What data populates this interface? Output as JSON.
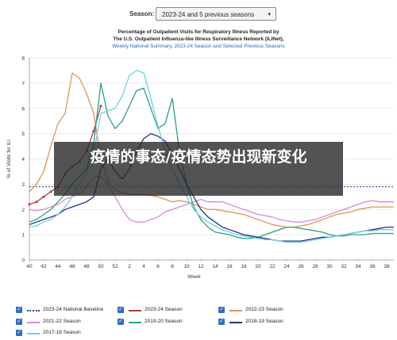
{
  "header": {
    "season_label": "Season:",
    "season_value": "2023-24 and 5 previous seasons",
    "caret": "▾"
  },
  "title": {
    "line1": "Percentage of Outpatient Visits for Respiratory Illness Reported by",
    "line2": "The U.S. Outpatient Influenza-like Illness Surveillance Network (ILINet),",
    "line3": "Weekly National Summary, 2023-24 Season and Selected Previous Seasons"
  },
  "overlay": {
    "text": "疫情的事态/疫情态势出现新变化"
  },
  "colors": {
    "baseline": "#1f3f8f",
    "s2023_24": "#b03a48",
    "s2022_23": "#e0954a",
    "s2021_22": "#d98ad6",
    "s2019_20": "#2aa37a",
    "s2018_19": "#23328a",
    "s2017_18": "#6fd0e8",
    "checkbox": "#2f6fc3"
  },
  "chart_data": {
    "type": "line",
    "xlabel": "Week",
    "ylabel": "% of Visits for ILI",
    "x_ticks": [
      "40",
      "42",
      "44",
      "46",
      "48",
      "50",
      "52",
      "2",
      "4",
      "6",
      "8",
      "10",
      "12",
      "14",
      "16",
      "18",
      "20",
      "22",
      "24",
      "26",
      "28",
      "30",
      "32",
      "34",
      "36",
      "38"
    ],
    "ylim": [
      0,
      8
    ],
    "y_ticks": [
      0,
      1,
      2,
      3,
      4,
      5,
      6,
      7,
      8
    ],
    "baseline": {
      "name": "2023-24 National Baseline",
      "value": 2.9
    },
    "series": [
      {
        "name": "2023-24 Season",
        "key": "s2023_24",
        "markers": true,
        "values": [
          2.2,
          2.3,
          2.5,
          2.7,
          2.9,
          3.4,
          3.7,
          3.9,
          4.3,
          5.1,
          6.1
        ]
      },
      {
        "name": "2022-23 Season",
        "key": "s2022_23",
        "values": [
          2.7,
          3.0,
          3.5,
          4.5,
          5.4,
          5.8,
          7.4,
          7.2,
          6.6,
          5.8,
          4.0,
          3.1,
          2.8,
          2.65,
          2.6,
          2.6,
          2.6,
          2.55,
          2.5,
          2.4,
          2.3,
          2.35,
          2.3,
          2.2,
          2.1,
          2.0,
          2.0,
          1.95,
          1.9,
          1.85,
          1.8,
          1.7,
          1.6,
          1.5,
          1.4,
          1.35,
          1.3,
          1.3,
          1.35,
          1.4,
          1.5,
          1.6,
          1.7,
          1.8,
          1.85,
          1.9,
          2.0,
          2.05,
          2.1,
          2.1,
          2.1,
          2.1
        ]
      },
      {
        "name": "2021-22 Season",
        "key": "s2021_22",
        "values": [
          2.0,
          1.95,
          2.0,
          2.1,
          2.2,
          2.4,
          2.5,
          2.6,
          2.9,
          3.3,
          3.3,
          3.0,
          2.5,
          2.0,
          1.6,
          1.5,
          1.5,
          1.6,
          1.7,
          1.9,
          2.0,
          2.1,
          2.2,
          2.3,
          2.4,
          2.3,
          2.3,
          2.3,
          2.2,
          2.1,
          2.0,
          1.9,
          1.8,
          1.75,
          1.7,
          1.6,
          1.55,
          1.5,
          1.5,
          1.55,
          1.6,
          1.7,
          1.8,
          1.9,
          2.0,
          2.1,
          2.2,
          2.3,
          2.35,
          2.3,
          2.3,
          2.3
        ]
      },
      {
        "name": "2019-20 Season",
        "key": "s2019_20",
        "values": [
          1.5,
          1.6,
          1.8,
          2.0,
          2.3,
          2.6,
          3.0,
          3.3,
          3.6,
          4.6,
          7.0,
          5.7,
          5.2,
          5.5,
          6.1,
          6.7,
          6.8,
          6.0,
          5.2,
          5.4,
          6.4,
          4.3,
          3.0,
          2.1,
          1.6,
          1.3,
          1.1,
          1.05,
          1.0,
          0.9,
          0.85,
          0.85,
          0.9,
          1.0,
          1.1,
          1.2,
          1.3,
          1.3,
          1.25,
          1.2,
          1.15,
          1.1,
          1.0,
          0.95,
          0.95,
          1.0,
          1.0,
          1.0,
          1.05,
          1.05,
          1.05,
          1.05
        ]
      },
      {
        "name": "2018-19 Season",
        "key": "s2018_19",
        "values": [
          1.4,
          1.5,
          1.6,
          1.7,
          1.8,
          2.0,
          2.1,
          2.2,
          2.3,
          2.5,
          3.6,
          4.0,
          3.5,
          3.2,
          3.6,
          4.3,
          4.8,
          5.0,
          4.9,
          4.7,
          4.2,
          3.6,
          3.0,
          2.5,
          2.0,
          1.7,
          1.5,
          1.3,
          1.2,
          1.1,
          1.0,
          0.95,
          0.9,
          0.85,
          0.8,
          0.75,
          0.75,
          0.75,
          0.75,
          0.8,
          0.85,
          0.9,
          0.9,
          0.95,
          1.0,
          1.05,
          1.1,
          1.15,
          1.2,
          1.25,
          1.3,
          1.3
        ]
      },
      {
        "name": "2017-18 Season",
        "key": "s2017_18",
        "values": [
          1.3,
          1.35,
          1.5,
          1.6,
          1.8,
          2.1,
          2.5,
          3.0,
          3.5,
          4.2,
          5.8,
          5.9,
          6.0,
          6.5,
          7.3,
          7.5,
          7.4,
          6.4,
          5.3,
          4.3,
          3.6,
          3.0,
          2.5,
          2.0,
          1.7,
          1.5,
          1.35,
          1.2,
          1.1,
          1.0,
          0.95,
          0.9,
          0.85,
          0.8,
          0.8,
          0.75,
          0.7,
          0.7,
          0.7,
          0.75,
          0.8,
          0.85,
          0.9,
          0.95,
          1.0,
          1.05,
          1.1,
          1.15,
          1.15,
          1.2,
          1.2,
          1.2
        ]
      }
    ]
  },
  "legend": {
    "check_glyph": "✓",
    "items": [
      {
        "label": "2023-24 National Baseline",
        "key": "baseline"
      },
      {
        "label": "2023-24 Season",
        "key": "s2023_24"
      },
      {
        "label": "2022-23 Season",
        "key": "s2022_23"
      },
      {
        "label": "2021-22 Season",
        "key": "s2021_22"
      },
      {
        "label": "2019-20 Season",
        "key": "s2019_20"
      },
      {
        "label": "2018-19 Season",
        "key": "s2018_19"
      },
      {
        "label": "2017-18 Season",
        "key": "s2017_18"
      }
    ]
  }
}
